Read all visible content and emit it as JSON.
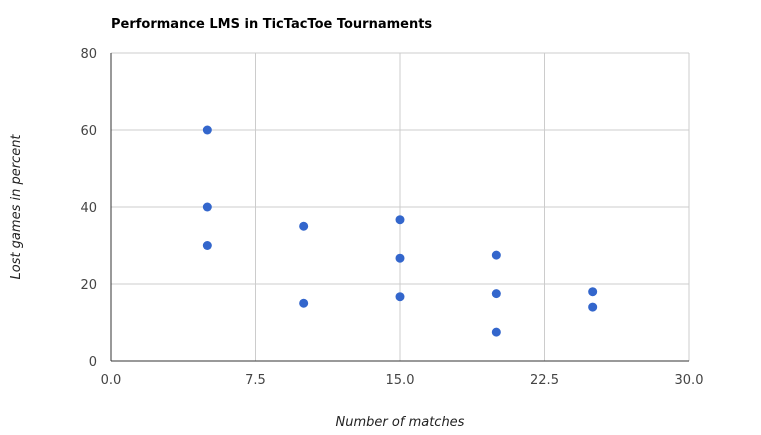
{
  "chart_data": {
    "type": "scatter",
    "title": "Performance LMS in TicTacToe Tournaments",
    "xlabel": "Number of matches",
    "ylabel": "Lost games in percent",
    "xlim": [
      0,
      30
    ],
    "ylim": [
      0,
      80
    ],
    "x_ticks": [
      "0.0",
      "7.5",
      "15.0",
      "22.5",
      "30.0"
    ],
    "y_ticks": [
      "0",
      "20",
      "40",
      "60",
      "80"
    ],
    "grid": true,
    "legend": "none",
    "series": [
      {
        "color": "#3366cc",
        "points": [
          {
            "x": 5,
            "y": 60
          },
          {
            "x": 5,
            "y": 40
          },
          {
            "x": 5,
            "y": 30
          },
          {
            "x": 10,
            "y": 35
          },
          {
            "x": 10,
            "y": 15
          },
          {
            "x": 15,
            "y": 36.7
          },
          {
            "x": 15,
            "y": 26.7
          },
          {
            "x": 15,
            "y": 16.7
          },
          {
            "x": 20,
            "y": 27.5
          },
          {
            "x": 20,
            "y": 17.5
          },
          {
            "x": 20,
            "y": 7.5
          },
          {
            "x": 25,
            "y": 18
          },
          {
            "x": 25,
            "y": 14
          }
        ]
      }
    ]
  }
}
